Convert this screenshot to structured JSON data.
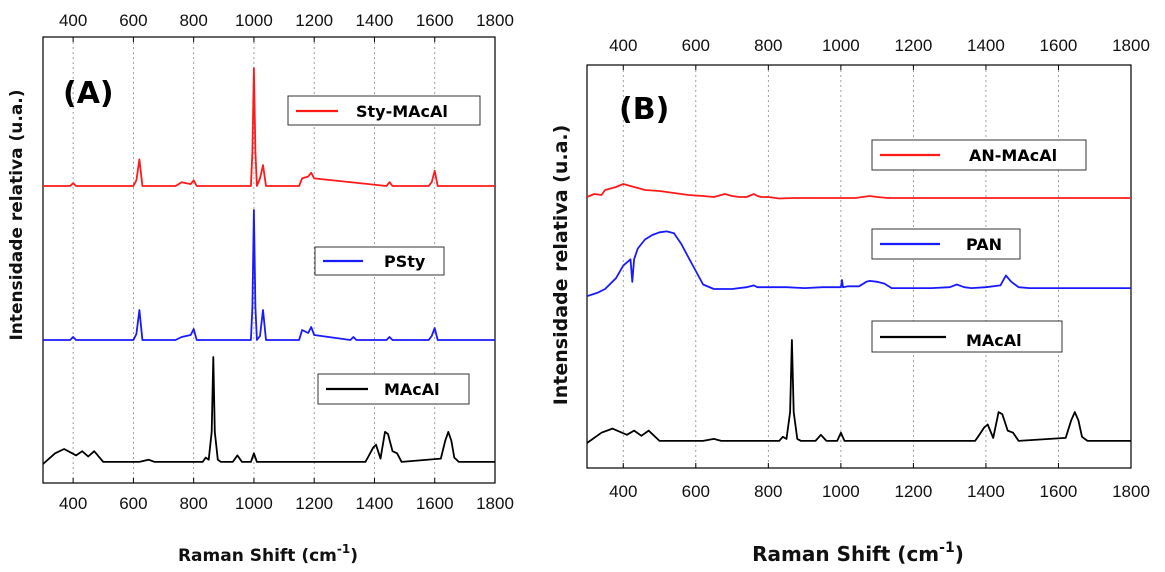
{
  "colors": {
    "red": "#ff1a1a",
    "blue": "#1a1aff",
    "black": "#000000"
  },
  "chart_data": [
    {
      "type": "line",
      "panel_label": "(A)",
      "xlabel": "Raman Shift (cm",
      "xlabel_sup": "-1",
      "xlabel_close": ")",
      "ylabel": "Intensidade relativa (u.a.)",
      "xlim": [
        300,
        1800
      ],
      "x_ticks": [
        400,
        600,
        800,
        1000,
        1200,
        1400,
        1600,
        1800
      ],
      "grid": "vertical dotted",
      "series": [
        {
          "name": "Sty-MAcAl",
          "color": "#ff1a1a",
          "x": [
            300,
            390,
            400,
            410,
            600,
            610,
            620,
            630,
            740,
            760,
            790,
            800,
            810,
            990,
            995,
            1000,
            1005,
            1010,
            1020,
            1030,
            1040,
            1150,
            1160,
            1180,
            1190,
            1200,
            1440,
            1450,
            1460,
            1580,
            1590,
            1600,
            1610,
            1800
          ],
          "y": [
            0,
            0,
            1.5,
            0,
            0,
            3,
            14,
            0,
            0,
            2,
            1,
            3,
            0,
            0,
            18,
            62,
            18,
            0,
            4,
            11,
            0,
            0,
            4,
            5,
            7,
            4,
            0,
            2,
            0,
            0,
            2,
            8,
            0,
            0
          ]
        },
        {
          "name": "PSty",
          "color": "#1a1aff",
          "x": [
            300,
            390,
            400,
            410,
            600,
            610,
            620,
            630,
            740,
            760,
            790,
            800,
            810,
            990,
            995,
            1000,
            1005,
            1010,
            1020,
            1030,
            1040,
            1150,
            1160,
            1180,
            1190,
            1200,
            1320,
            1330,
            1340,
            1440,
            1450,
            1460,
            1580,
            1590,
            1600,
            1610,
            1800
          ],
          "y": [
            0,
            0,
            3,
            0,
            0,
            6,
            30,
            0,
            0,
            3,
            5,
            11,
            0,
            0,
            33,
            130,
            33,
            0,
            4,
            30,
            0,
            0,
            10,
            7,
            13,
            5,
            0,
            3,
            0,
            0,
            3,
            0,
            0,
            4,
            12,
            0,
            0
          ]
        },
        {
          "name": "MAcAl",
          "color": "#000000",
          "x": [
            300,
            340,
            370,
            390,
            410,
            430,
            450,
            470,
            500,
            590,
            620,
            650,
            670,
            690,
            830,
            840,
            850,
            860,
            865,
            870,
            880,
            890,
            930,
            945,
            960,
            990,
            1000,
            1010,
            1030,
            1370,
            1380,
            1395,
            1405,
            1420,
            1435,
            1445,
            1460,
            1475,
            1490,
            1620,
            1635,
            1645,
            1655,
            1665,
            1680,
            1800
          ],
          "y": [
            0,
            10,
            14,
            11,
            8,
            12,
            7,
            12,
            2,
            2,
            2,
            4,
            2,
            2,
            2,
            6,
            4,
            30,
            100,
            30,
            4,
            2,
            2,
            8,
            2,
            2,
            10,
            2,
            2,
            2,
            7,
            15,
            18,
            5,
            30,
            28,
            12,
            10,
            2,
            5,
            22,
            30,
            22,
            6,
            2,
            2
          ]
        }
      ]
    },
    {
      "type": "line",
      "panel_label": "(B)",
      "xlabel": "Raman Shift (cm",
      "xlabel_sup": "-1",
      "xlabel_close": ")",
      "ylabel": "Intensidade relativa (u.a.)",
      "xlim": [
        300,
        1800
      ],
      "x_ticks": [
        400,
        600,
        800,
        1000,
        1200,
        1400,
        1600,
        1800
      ],
      "grid": "vertical dotted",
      "series": [
        {
          "name": "AN-MAcAl",
          "color": "#ff1a1a",
          "x": [
            300,
            320,
            340,
            350,
            360,
            380,
            400,
            420,
            460,
            500,
            540,
            580,
            620,
            650,
            680,
            700,
            720,
            740,
            760,
            770,
            780,
            800,
            830,
            870,
            900,
            950,
            1000,
            1040,
            1060,
            1080,
            1100,
            1130,
            1160,
            1200,
            1300,
            1400,
            1500,
            1600,
            1700,
            1800
          ],
          "y": [
            2,
            5,
            4,
            9,
            10,
            12,
            15,
            13,
            9,
            8,
            6,
            4,
            3,
            2,
            5,
            3,
            2,
            2,
            5,
            3,
            2,
            2,
            0.5,
            1,
            1,
            1,
            1,
            1,
            2,
            3,
            2,
            1,
            1,
            1,
            1,
            1,
            1,
            1,
            1,
            1
          ]
        },
        {
          "name": "PAN",
          "color": "#1a1aff",
          "x": [
            300,
            330,
            350,
            380,
            400,
            420,
            425,
            430,
            440,
            460,
            480,
            500,
            520,
            540,
            560,
            580,
            600,
            620,
            650,
            680,
            700,
            740,
            760,
            770,
            800,
            830,
            850,
            900,
            950,
            1000,
            1003,
            1006,
            1020,
            1050,
            1070,
            1080,
            1100,
            1120,
            1140,
            1160,
            1200,
            1250,
            1300,
            1320,
            1340,
            1360,
            1400,
            1440,
            1455,
            1470,
            1490,
            1520,
            1560,
            1600,
            1640,
            1700,
            1750,
            1800
          ],
          "y": [
            -8,
            -4,
            0,
            12,
            26,
            33,
            8,
            33,
            45,
            55,
            60,
            63,
            64,
            62,
            50,
            35,
            20,
            5,
            0,
            0,
            0,
            2,
            4,
            2,
            2,
            2,
            2,
            1,
            2,
            2,
            10,
            2,
            3,
            3,
            8,
            9,
            8,
            6,
            1,
            1,
            1,
            1,
            2,
            5,
            2,
            1,
            2,
            4,
            15,
            8,
            2,
            1,
            1,
            1,
            1,
            1,
            1,
            1
          ]
        },
        {
          "name": "MAcAl",
          "color": "#000000",
          "x": [
            300,
            340,
            370,
            390,
            410,
            430,
            450,
            470,
            500,
            590,
            620,
            650,
            670,
            690,
            830,
            840,
            850,
            860,
            865,
            870,
            880,
            890,
            930,
            945,
            960,
            990,
            1000,
            1010,
            1030,
            1370,
            1380,
            1395,
            1405,
            1420,
            1435,
            1445,
            1460,
            1475,
            1490,
            1620,
            1635,
            1645,
            1655,
            1665,
            1680,
            1800
          ],
          "y": [
            0,
            10,
            14,
            11,
            8,
            12,
            7,
            12,
            2,
            2,
            2,
            4,
            2,
            2,
            2,
            6,
            4,
            30,
            100,
            30,
            4,
            2,
            2,
            8,
            2,
            2,
            10,
            2,
            2,
            2,
            7,
            15,
            18,
            5,
            30,
            28,
            12,
            10,
            2,
            5,
            22,
            30,
            22,
            6,
            2,
            2
          ]
        }
      ]
    }
  ]
}
